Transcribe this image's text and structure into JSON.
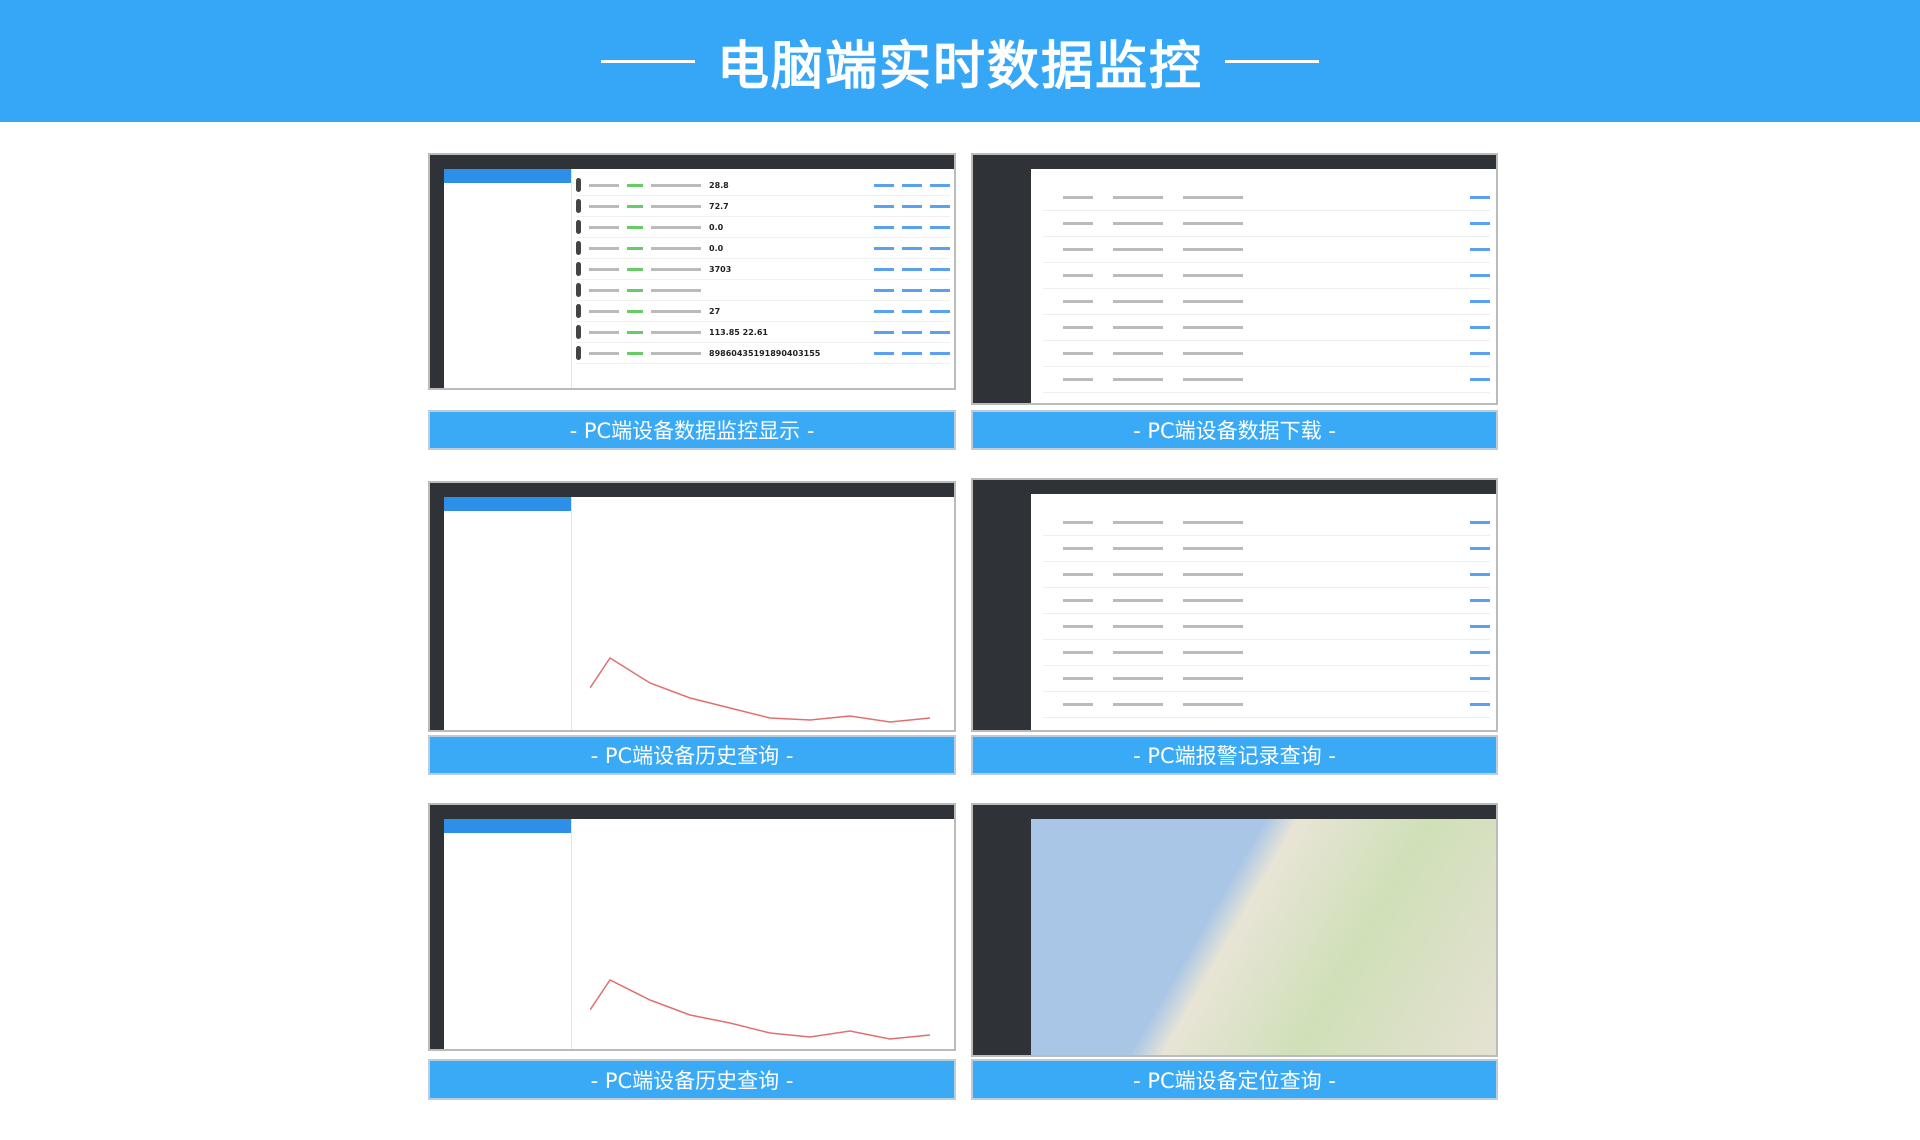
{
  "header": {
    "title": "电脑端实时数据监控"
  },
  "captions": [
    "- PC端设备数据监控显示 -",
    "- PC端设备数据下载 -",
    "- PC端设备历史查询 -",
    "- PC端报警记录查询 -",
    "- PC端设备历史查询 -",
    "- PC端设备定位查询 -"
  ],
  "monitor": {
    "values": [
      "28.8",
      "72.7",
      "0.0",
      "0.0",
      "3703",
      "",
      "27",
      "113.85    22.61",
      "89860435191890403155"
    ]
  },
  "colors": {
    "header": "#36a7f7",
    "caption": "#3aaaf7",
    "sidebar": "#2f3338"
  }
}
